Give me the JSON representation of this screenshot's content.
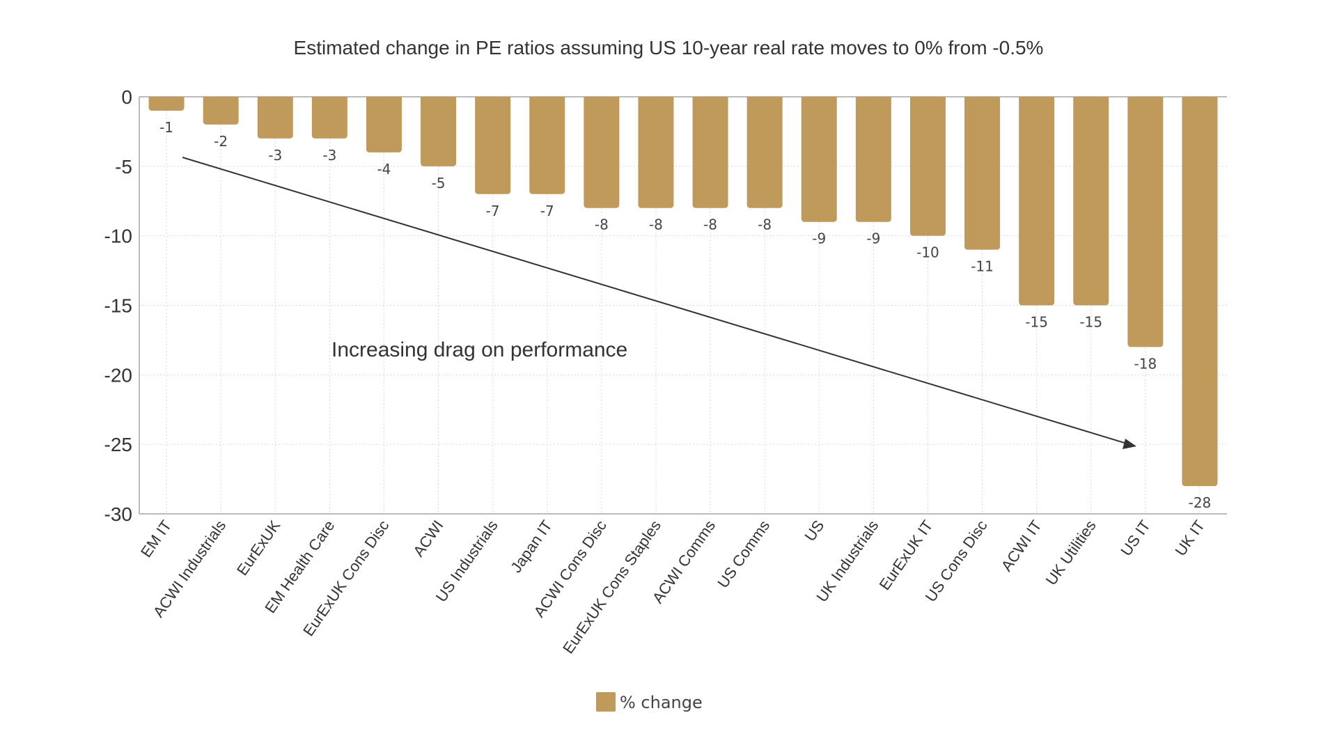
{
  "chart_data": {
    "type": "bar",
    "title": "Estimated change in PE ratios assuming US 10-year real rate moves to 0% from -0.5%",
    "xlabel": "",
    "ylabel": "",
    "categories": [
      "EM IT",
      "ACWI Industrials",
      "EurExUK",
      "EM Health Care",
      "EurExUK Cons Disc",
      "ACWI",
      "US Industrials",
      "Japan IT",
      "ACWI Cons Disc",
      "EurExUK Cons Staples",
      "ACWI Comms",
      "US Comms",
      "US",
      "UK Industrials",
      "EurExUK IT",
      "US Cons Disc",
      "ACWI IT",
      "UK Utilities",
      "US IT",
      "UK IT"
    ],
    "series": [
      {
        "name": "% change",
        "values": [
          -1,
          -2,
          -3,
          -3,
          -4,
          -5,
          -7,
          -7,
          -8,
          -8,
          -8,
          -8,
          -9,
          -9,
          -10,
          -11,
          -15,
          -15,
          -18,
          -28
        ],
        "color": "#c09a5b"
      }
    ],
    "ylim": [
      -30,
      0
    ],
    "yticks": [
      0,
      -5,
      -10,
      -15,
      -20,
      -25,
      -30
    ],
    "grid": true,
    "data_labels": true,
    "legend_position": "bottom-center",
    "annotation": {
      "text": "Increasing drag on performance",
      "arrow": "downward diagonal from left to right"
    }
  }
}
